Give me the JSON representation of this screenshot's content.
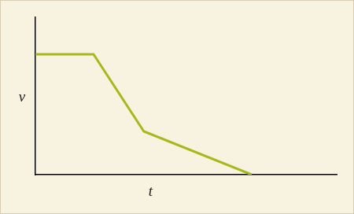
{
  "chart_data": {
    "type": "line",
    "xlabel": "t",
    "ylabel": "v",
    "x": [
      0,
      1.93,
      3.6,
      7.18
    ],
    "values": [
      7.65,
      7.65,
      2.75,
      0
    ],
    "color": "#a5b81c",
    "xlim": [
      0,
      10
    ],
    "ylim": [
      0,
      10
    ],
    "grid": false,
    "tick_labels": false
  }
}
